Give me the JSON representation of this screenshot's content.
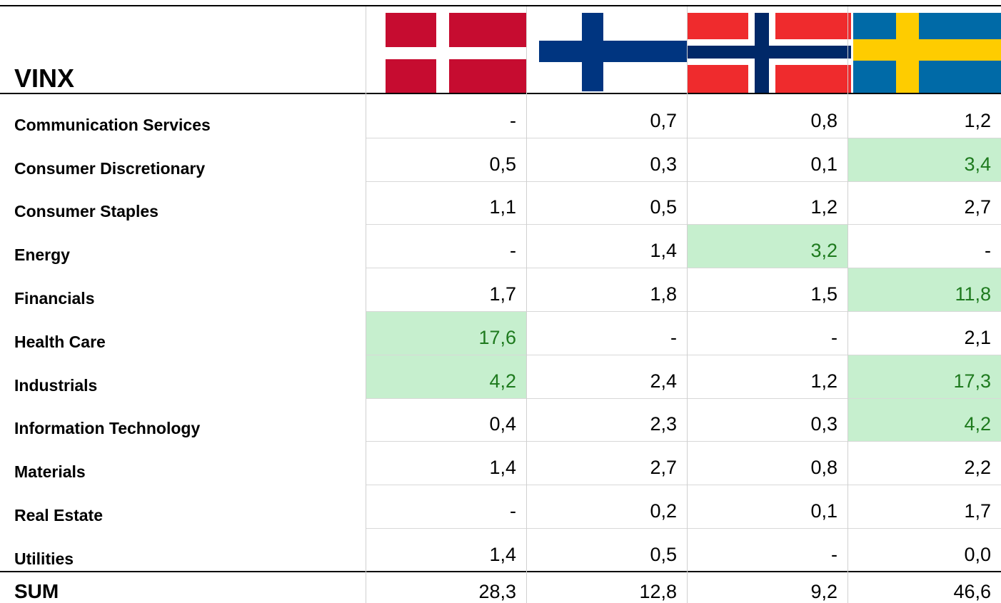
{
  "table": {
    "title": "VINX",
    "rows": [
      {
        "label": "Communication Services",
        "cells": [
          "-",
          "0,7",
          "0,8",
          "1,2"
        ]
      },
      {
        "label": "Consumer Discretionary",
        "cells": [
          "0,5",
          "0,3",
          "0,1",
          "3,4"
        ]
      },
      {
        "label": "Consumer Staples",
        "cells": [
          "1,1",
          "0,5",
          "1,2",
          "2,7"
        ]
      },
      {
        "label": "Energy",
        "cells": [
          "-",
          "1,4",
          "3,2",
          "-"
        ]
      },
      {
        "label": "Financials",
        "cells": [
          "1,7",
          "1,8",
          "1,5",
          "11,8"
        ]
      },
      {
        "label": "Health Care",
        "cells": [
          "17,6",
          "-",
          "-",
          "2,1"
        ]
      },
      {
        "label": "Industrials",
        "cells": [
          "4,2",
          "2,4",
          "1,2",
          "17,3"
        ]
      },
      {
        "label": "Information Technology",
        "cells": [
          "0,4",
          "2,3",
          "0,3",
          "4,2"
        ]
      },
      {
        "label": "Materials",
        "cells": [
          "1,4",
          "2,7",
          "0,8",
          "2,2"
        ]
      },
      {
        "label": "Real Estate",
        "cells": [
          "-",
          "0,2",
          "0,1",
          "1,7"
        ]
      },
      {
        "label": "Utilities",
        "cells": [
          "1,4",
          "0,5",
          "-",
          "0,0"
        ]
      }
    ],
    "total": {
      "label": "SUM",
      "cells": [
        "28,3",
        "12,8",
        "9,2",
        "46,6"
      ]
    },
    "highlight": [
      [
        1,
        3
      ],
      [
        3,
        2
      ],
      [
        4,
        3
      ],
      [
        5,
        0
      ],
      [
        6,
        0
      ],
      [
        6,
        3
      ],
      [
        7,
        3
      ]
    ],
    "highlight_color": "#c6efce",
    "highlight_text_color": "#1e7a1e"
  }
}
